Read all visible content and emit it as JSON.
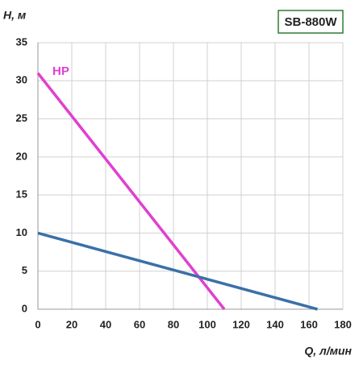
{
  "chart_data": {
    "type": "line",
    "title": "SB-880W",
    "ylabel": "H, м",
    "xlabel": "Q, л/мин",
    "series": [
      {
        "name": "HP",
        "color": "#e040d0",
        "x": [
          0,
          110
        ],
        "values": [
          31,
          0
        ]
      },
      {
        "color": "#3a70a8",
        "x": [
          0,
          165
        ],
        "values": [
          10,
          0
        ]
      }
    ],
    "xlim": [
      0,
      180
    ],
    "xticks": [
      0,
      20,
      40,
      60,
      80,
      100,
      120,
      140,
      160,
      180
    ],
    "ylim": [
      0,
      35
    ],
    "yticks": [
      0,
      5,
      10,
      15,
      20,
      25,
      30,
      35
    ],
    "grid": true
  }
}
